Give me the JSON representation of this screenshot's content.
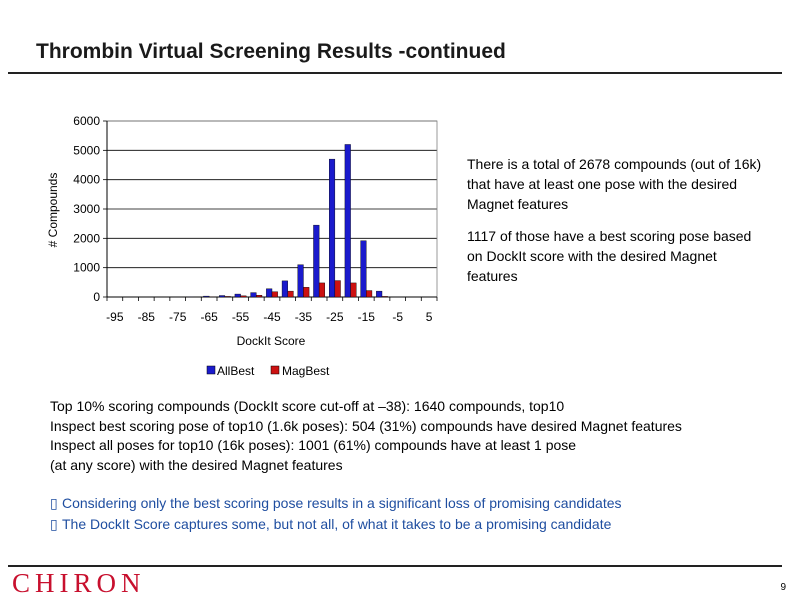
{
  "slide": {
    "title": "Thrombin Virtual Screening Results -continued",
    "page_number": "9",
    "logo_text": "CHIRON"
  },
  "notes": [
    "There is a total of 2678 compounds (out of 16k) that have at least one pose with the desired Magnet features",
    "1117 of those have a best scoring pose based on DockIt score with the desired Magnet features"
  ],
  "body_lines": [
    "Top 10% scoring compounds (DockIt score cut-off at –38): 1640 compounds, top10",
    "Inspect best scoring pose of top10 (1.6k poses): 504 (31%) compounds have desired Magnet features",
    "Inspect all poses for top10 (16k poses): 1001 (61%) compounds have at least 1 pose",
    "(at any score) with the desired Magnet features"
  ],
  "bullets": [
    "Considering only the best scoring pose results in a significant loss of promising candidates",
    "The DockIt Score captures some, but not all, of what it takes to be a promising candidate"
  ],
  "colors": {
    "allbest": "#1a1acc",
    "magbest": "#cc1111",
    "bullet_text": "#1f4ea0",
    "logo": "#c8102e"
  },
  "chart_data": {
    "type": "bar",
    "xlabel": "DockIt Score",
    "ylabel": "# Compounds",
    "ylim": [
      0,
      6000
    ],
    "yticks": [
      0,
      1000,
      2000,
      3000,
      4000,
      5000,
      6000
    ],
    "xlim": [
      -97.5,
      7.5
    ],
    "xtick_labels": [
      "-95",
      "-85",
      "-75",
      "-65",
      "-55",
      "-45",
      "-35",
      "-25",
      "-15",
      "-5",
      "5"
    ],
    "xtick_values": [
      -95,
      -85,
      -75,
      -65,
      -55,
      -45,
      -35,
      -25,
      -15,
      -5,
      5
    ],
    "categories": [
      -95,
      -90,
      -85,
      -80,
      -75,
      -70,
      -65,
      -60,
      -55,
      -50,
      -45,
      -40,
      -35,
      -30,
      -25,
      -20,
      -15,
      -10,
      -5,
      0,
      5
    ],
    "series": [
      {
        "name": "AllBest",
        "values": [
          0,
          0,
          0,
          0,
          0,
          5,
          30,
          50,
          100,
          150,
          280,
          550,
          1100,
          2450,
          4700,
          5200,
          1920,
          200,
          10,
          0,
          0
        ]
      },
      {
        "name": "MagBest",
        "values": [
          0,
          0,
          0,
          0,
          0,
          0,
          5,
          20,
          40,
          60,
          180,
          200,
          330,
          480,
          560,
          480,
          220,
          20,
          0,
          0,
          0
        ]
      }
    ],
    "legend_position": "bottom",
    "grid": true
  }
}
